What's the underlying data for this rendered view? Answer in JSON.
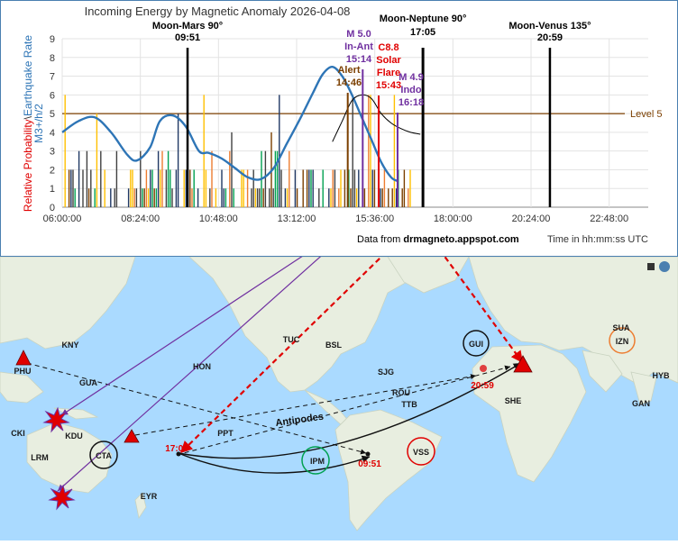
{
  "chart_data": {
    "type": "line",
    "title": "Incoming Energy by Magnetic Anomaly 2026-04-08",
    "ylabel_red": "Relative Probability",
    "ylabel_sep": "\\",
    "ylabel_blue": "Earthquake Rate",
    "ylabel2": "M3+/h/2",
    "xlabel": "Time in hh:mm:ss UTC",
    "credit": "Data from ",
    "credit_bold": "drmagneto.appspot.com",
    "x_ticks": [
      "06:00:00",
      "08:24:00",
      "10:48:00",
      "13:12:00",
      "15:36:00",
      "18:00:00",
      "20:24:00",
      "22:48:00"
    ],
    "y_ticks": [
      "0",
      "1",
      "2",
      "3",
      "4",
      "5",
      "6",
      "7",
      "8",
      "9"
    ],
    "ylim": [
      0,
      9
    ],
    "xlim_hours": [
      6,
      24
    ],
    "level_line": {
      "value": 5,
      "label": "Level 5",
      "color": "#7b3f00"
    },
    "events": [
      {
        "label": "Moon-Mars 90°",
        "time": "09:51",
        "hour": 9.85,
        "color": "#000000"
      },
      {
        "label": "Moon-Neptune 90°",
        "time": "17:05",
        "hour": 17.08,
        "color": "#000000"
      },
      {
        "label": "Moon-Venus 135°",
        "time": "20:59",
        "hour": 20.98,
        "color": "#000000"
      }
    ],
    "annotations": [
      {
        "lines": [
          "M 5.0",
          "In-Ant",
          "15:14"
        ],
        "hour": 15.23,
        "color": "#7030a0"
      },
      {
        "lines": [
          "C8.8",
          "Solar",
          "Flare",
          "15:43"
        ],
        "hour": 15.72,
        "color": "#e00000"
      },
      {
        "lines": [
          "M 4.9",
          "Indo",
          "16:18"
        ],
        "hour": 16.3,
        "color": "#7030a0"
      },
      {
        "lines": [
          "Alert",
          "14:46"
        ],
        "hour": 14.77,
        "color": "#7b3f00"
      }
    ],
    "earthquake_rate": {
      "name": "Earthquake Rate",
      "color": "#2e75b6",
      "x": [
        6.0,
        6.5,
        7.0,
        7.5,
        8.0,
        8.3,
        8.7,
        9.0,
        9.4,
        9.8,
        10.2,
        10.5,
        10.9,
        11.3,
        11.7,
        12.1,
        12.5,
        12.9,
        13.3,
        13.7,
        14.0,
        14.3,
        14.6,
        14.9,
        15.2,
        15.5,
        15.8,
        16.1,
        16.3
      ],
      "y": [
        4.0,
        4.6,
        4.8,
        4.0,
        2.8,
        2.5,
        3.2,
        4.6,
        4.9,
        4.3,
        3.0,
        2.9,
        2.6,
        2.1,
        1.6,
        1.5,
        2.1,
        3.4,
        4.7,
        6.1,
        7.1,
        7.5,
        7.0,
        6.0,
        4.8,
        3.6,
        2.4,
        1.6,
        1.4
      ]
    },
    "probability_fit": {
      "name": "Relative Probability fit",
      "color": "#000000",
      "x": [
        14.3,
        14.6,
        14.9,
        15.2,
        15.5,
        15.8,
        16.1,
        16.4,
        16.7,
        17.0
      ],
      "y": [
        3.5,
        4.6,
        5.7,
        6.0,
        5.8,
        5.0,
        4.5,
        4.2,
        4.0,
        3.9
      ]
    },
    "bar_series": [
      {
        "name": "orange",
        "color": "#ed7d31"
      },
      {
        "name": "green",
        "color": "#00a050"
      },
      {
        "name": "dark",
        "color": "#404040"
      },
      {
        "name": "yellow",
        "color": "#ffc000"
      },
      {
        "name": "blue",
        "color": "#203864"
      },
      {
        "name": "brown",
        "color": "#7b3f00"
      }
    ],
    "bar_region_hours": [
      6.0,
      16.9
    ]
  },
  "map": {
    "labels": [
      {
        "text": "KNY",
        "color": "#1a1a1a"
      },
      {
        "text": "PHU",
        "color": "#1a1a1a"
      },
      {
        "text": "GUA",
        "color": "#1a1a1a"
      },
      {
        "text": "HON",
        "color": "#1a1a1a"
      },
      {
        "text": "CKI",
        "color": "#1a1a1a"
      },
      {
        "text": "KDU",
        "color": "#1a1a1a"
      },
      {
        "text": "LRM",
        "color": "#1a1a1a"
      },
      {
        "text": "CTA",
        "color": "#1a1a1a"
      },
      {
        "text": "EYR",
        "color": "#1a1a1a"
      },
      {
        "text": "PPT",
        "color": "#1a1a1a"
      },
      {
        "text": "TUC",
        "color": "#1a1a1a"
      },
      {
        "text": "BSL",
        "color": "#1a1a1a"
      },
      {
        "text": "SJG",
        "color": "#1a1a1a"
      },
      {
        "text": "ROU",
        "color": "#1a1a1a"
      },
      {
        "text": "TTB",
        "color": "#1a1a1a"
      },
      {
        "text": "IPM",
        "color": "#1a1a1a"
      },
      {
        "text": "VSS",
        "color": "#1a1a1a"
      },
      {
        "text": "GUI",
        "color": "#1a1a1a"
      },
      {
        "text": "SHE",
        "color": "#1a1a1a"
      },
      {
        "text": "SUA",
        "color": "#1a1a1a"
      },
      {
        "text": "IZN",
        "color": "#1a1a1a"
      },
      {
        "text": "HYB",
        "color": "#1a1a1a"
      },
      {
        "text": "GAN",
        "color": "#1a1a1a"
      }
    ],
    "antipodes_label": "Antipodes",
    "time_labels": [
      {
        "text": "17:05",
        "color": "#e00000"
      },
      {
        "text": "09:51",
        "color": "#e00000"
      },
      {
        "text": "20:59",
        "color": "#e00000"
      }
    ],
    "ocean_color": "#aadaff",
    "land_color": "#e8eee0"
  }
}
